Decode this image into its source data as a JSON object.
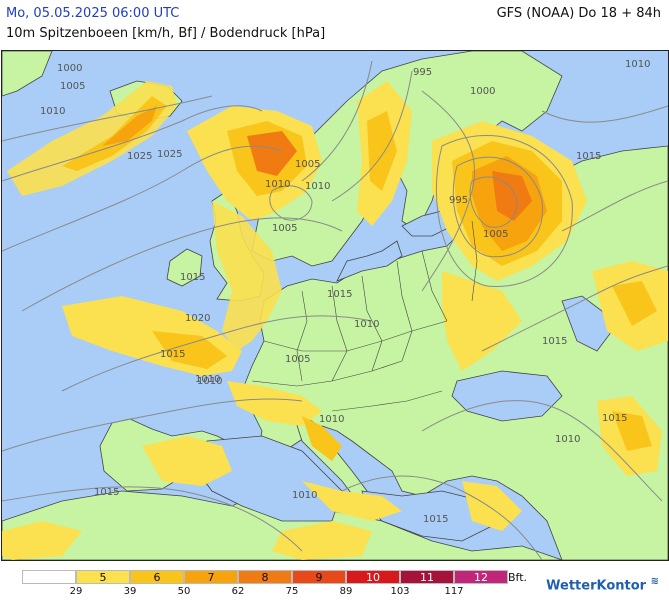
{
  "header": {
    "datetime": "Mo, 05.05.2025 06:00 UTC",
    "model": "GFS (NOAA) Do 18 + 84h",
    "parameter": "10m Spitzenboeen [km/h, Bf] / Bodendruck [hPa]"
  },
  "colors": {
    "sea": "#a9cdf6",
    "land": "#c6f4a2",
    "bf5": "#fbe04f",
    "bf6": "#f9c51b",
    "bf7": "#f6a30e",
    "bf8": "#f07b12"
  },
  "isobar_labels": [
    "1000",
    "1005",
    "1010",
    "1025",
    "995",
    "1000",
    "1010",
    "1015",
    "1015",
    "1015",
    "1010",
    "1005",
    "1005",
    "1020",
    "1015",
    "1010",
    "1015",
    "1005",
    "1025",
    "1010",
    "1005",
    "1010",
    "1010",
    "1010",
    "1015",
    "1015",
    "1015",
    "1010",
    "995",
    "1010"
  ],
  "legend": {
    "cells": [
      {
        "label": "",
        "color": "#ffffff"
      },
      {
        "label": "5",
        "color": "#fbe04f"
      },
      {
        "label": "6",
        "color": "#f9c51b"
      },
      {
        "label": "7",
        "color": "#f6a30e"
      },
      {
        "label": "8",
        "color": "#f07b12"
      },
      {
        "label": "9",
        "color": "#e8491a"
      },
      {
        "label": "10",
        "color": "#d7191c"
      },
      {
        "label": "11",
        "color": "#a5133a"
      },
      {
        "label": "12",
        "color": "#c0267a"
      }
    ],
    "ticks": [
      "29",
      "39",
      "50",
      "62",
      "75",
      "89",
      "103",
      "117"
    ],
    "unit": "Bft."
  },
  "brand": {
    "name": "WetterKontor",
    "icon": "wind-icon"
  }
}
